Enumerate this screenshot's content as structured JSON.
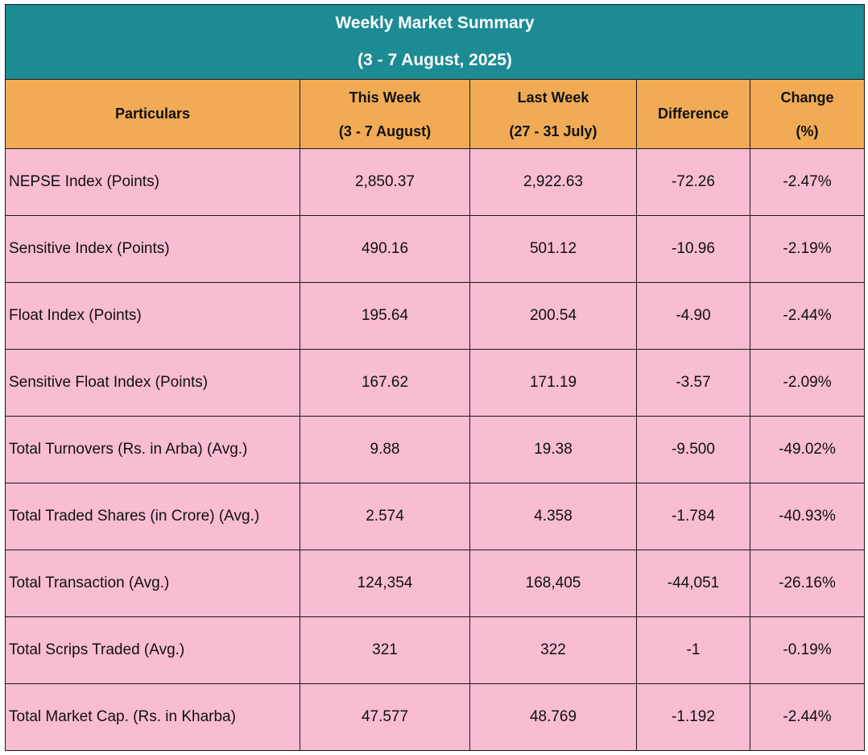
{
  "title": {
    "line1": "Weekly Market Summary",
    "line2": "(3 - 7 August, 2025)"
  },
  "headers": {
    "particulars": "Particulars",
    "this_week": "This Week",
    "this_week_range": "(3 - 7 August)",
    "last_week": "Last Week",
    "last_week_range": "(27 - 31 July)",
    "difference": "Difference",
    "change": "Change",
    "change_unit": "(%)"
  },
  "rows": [
    {
      "particular": "NEPSE Index (Points)",
      "this_week": "2,850.37",
      "last_week": "2,922.63",
      "difference": "-72.26",
      "change": "-2.47%"
    },
    {
      "particular": "Sensitive Index (Points)",
      "this_week": "490.16",
      "last_week": "501.12",
      "difference": "-10.96",
      "change": "-2.19%"
    },
    {
      "particular": "Float Index (Points)",
      "this_week": "195.64",
      "last_week": "200.54",
      "difference": "-4.90",
      "change": "-2.44%"
    },
    {
      "particular": "Sensitive Float Index (Points)",
      "this_week": "167.62",
      "last_week": "171.19",
      "difference": "-3.57",
      "change": "-2.09%"
    },
    {
      "particular": "Total Turnovers (Rs. in Arba) (Avg.)",
      "this_week": "9.88",
      "last_week": "19.38",
      "difference": "-9.500",
      "change": "-49.02%"
    },
    {
      "particular": "Total Traded Shares (in Crore) (Avg.)",
      "this_week": "2.574",
      "last_week": "4.358",
      "difference": "-1.784",
      "change": "-40.93%"
    },
    {
      "particular": "Total Transaction (Avg.)",
      "this_week": "124,354",
      "last_week": "168,405",
      "difference": "-44,051",
      "change": "-26.16%"
    },
    {
      "particular": "Total Scrips Traded (Avg.)",
      "this_week": "321",
      "last_week": "322",
      "difference": "-1",
      "change": "-0.19%"
    },
    {
      "particular": "Total Market Cap. (Rs. in Kharba)",
      "this_week": "47.577",
      "last_week": "48.769",
      "difference": "-1.192",
      "change": "-2.44%"
    }
  ],
  "colors": {
    "title_bg": "#1c8b94",
    "header_bg": "#f0ab54",
    "row_bg": "#f8bcd3"
  }
}
